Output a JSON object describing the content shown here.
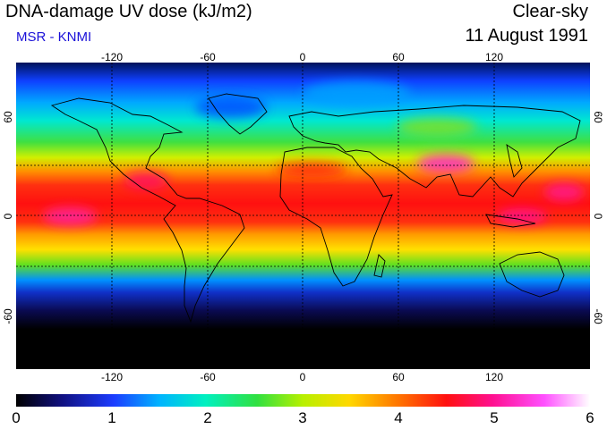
{
  "header": {
    "title": "DNA-damage UV dose (kJ/m2)",
    "credit": "MSR - KNMI",
    "sky": "Clear-sky",
    "date": "11 August 1991"
  },
  "map": {
    "projection": "equirectangular",
    "lon_range": [
      -180,
      180
    ],
    "lat_range": [
      -90,
      90
    ],
    "graticule_lon": [
      -120,
      -60,
      0,
      60,
      120
    ],
    "graticule_lat": [
      -30,
      30
    ],
    "lon_labels": [
      "-120",
      "-60",
      "0",
      "60",
      "120"
    ],
    "lat_labels": [
      "60",
      "0",
      "-60"
    ],
    "lat_values": [
      60,
      0,
      -60
    ],
    "lon_values": [
      -120,
      -60,
      0,
      60,
      120
    ],
    "value_range": [
      0,
      6
    ],
    "colors": {
      "scale": [
        "#000000",
        "#101080",
        "#1c3cff",
        "#00b4ff",
        "#00f0c0",
        "#30e040",
        "#b8f000",
        "#ffd800",
        "#ff7000",
        "#ff1010",
        "#ff1090",
        "#ff50ff",
        "#ffffff"
      ]
    }
  },
  "colorbar": {
    "ticks": [
      "0",
      "1",
      "2",
      "3",
      "4",
      "5",
      "6"
    ],
    "min": 0,
    "max": 6
  }
}
